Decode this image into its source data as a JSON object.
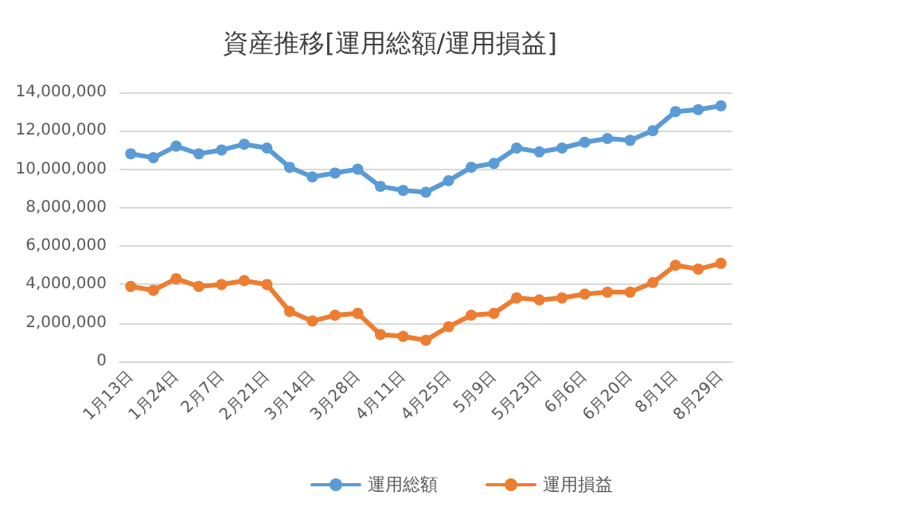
{
  "chart_data": {
    "type": "line",
    "title": "資産推移[運用総額/運用損益]",
    "categories": [
      "1月13日",
      null,
      "1月24日",
      null,
      "2月7日",
      null,
      "2月21日",
      null,
      "3月14日",
      null,
      "3月28日",
      null,
      "4月11日",
      null,
      "4月25日",
      null,
      "5月9日",
      null,
      "5月23日",
      null,
      "6月6日",
      null,
      "6月20日",
      null,
      "8月1日",
      null,
      "8月29日"
    ],
    "series": [
      {
        "name": "運用総額",
        "color": "#5b9bd5",
        "values": [
          10800000,
          10600000,
          11200000,
          10800000,
          11000000,
          11300000,
          11100000,
          10100000,
          9600000,
          9800000,
          10000000,
          9100000,
          8900000,
          8800000,
          9400000,
          10100000,
          10300000,
          11100000,
          10900000,
          11100000,
          11400000,
          11600000,
          11500000,
          12000000,
          13000000,
          13100000,
          13300000
        ]
      },
      {
        "name": "運用損益",
        "color": "#ed7d31",
        "values": [
          3900000,
          3700000,
          4300000,
          3900000,
          4000000,
          4200000,
          4000000,
          2600000,
          2100000,
          2400000,
          2500000,
          1400000,
          1300000,
          1100000,
          1800000,
          2400000,
          2500000,
          3300000,
          3200000,
          3300000,
          3500000,
          3600000,
          3600000,
          4100000,
          5000000,
          4800000,
          5100000
        ]
      }
    ],
    "ylim": [
      0,
      14000000
    ],
    "yticks": [
      0,
      {
        "value": 2000000,
        "label": "2,000,000"
      },
      {
        "value": 4000000,
        "label": "4,000,000"
      },
      {
        "value": 6000000,
        "label": "6,000,000"
      },
      {
        "value": 8000000,
        "label": "8,000,000"
      },
      {
        "value": 10000000,
        "label": "10,000,000"
      },
      {
        "value": 12000000,
        "label": "12,000,000"
      },
      {
        "value": 14000000,
        "label": "14,000,000"
      }
    ],
    "grid": "y",
    "legend": "bottom",
    "marker": "circle",
    "line_style": "solid"
  }
}
